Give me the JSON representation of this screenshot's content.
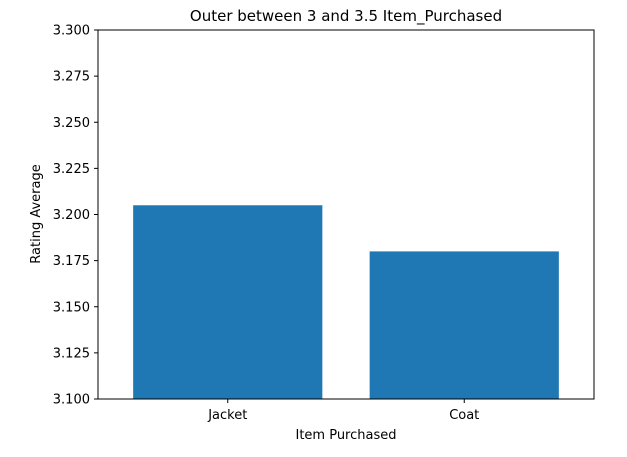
{
  "chart_data": {
    "type": "bar",
    "title": "Outer between 3 and 3.5 Item_Purchased",
    "xlabel": "Item Purchased",
    "ylabel": "Rating Average",
    "categories": [
      "Jacket",
      "Coat"
    ],
    "values": [
      3.205,
      3.18
    ],
    "ylim": [
      3.1,
      3.3
    ],
    "yticks": [
      "3.100",
      "3.125",
      "3.150",
      "3.175",
      "3.200",
      "3.225",
      "3.250",
      "3.275",
      "3.300"
    ],
    "bar_color": "#1f77b4",
    "grid": false,
    "legend": "none"
  }
}
